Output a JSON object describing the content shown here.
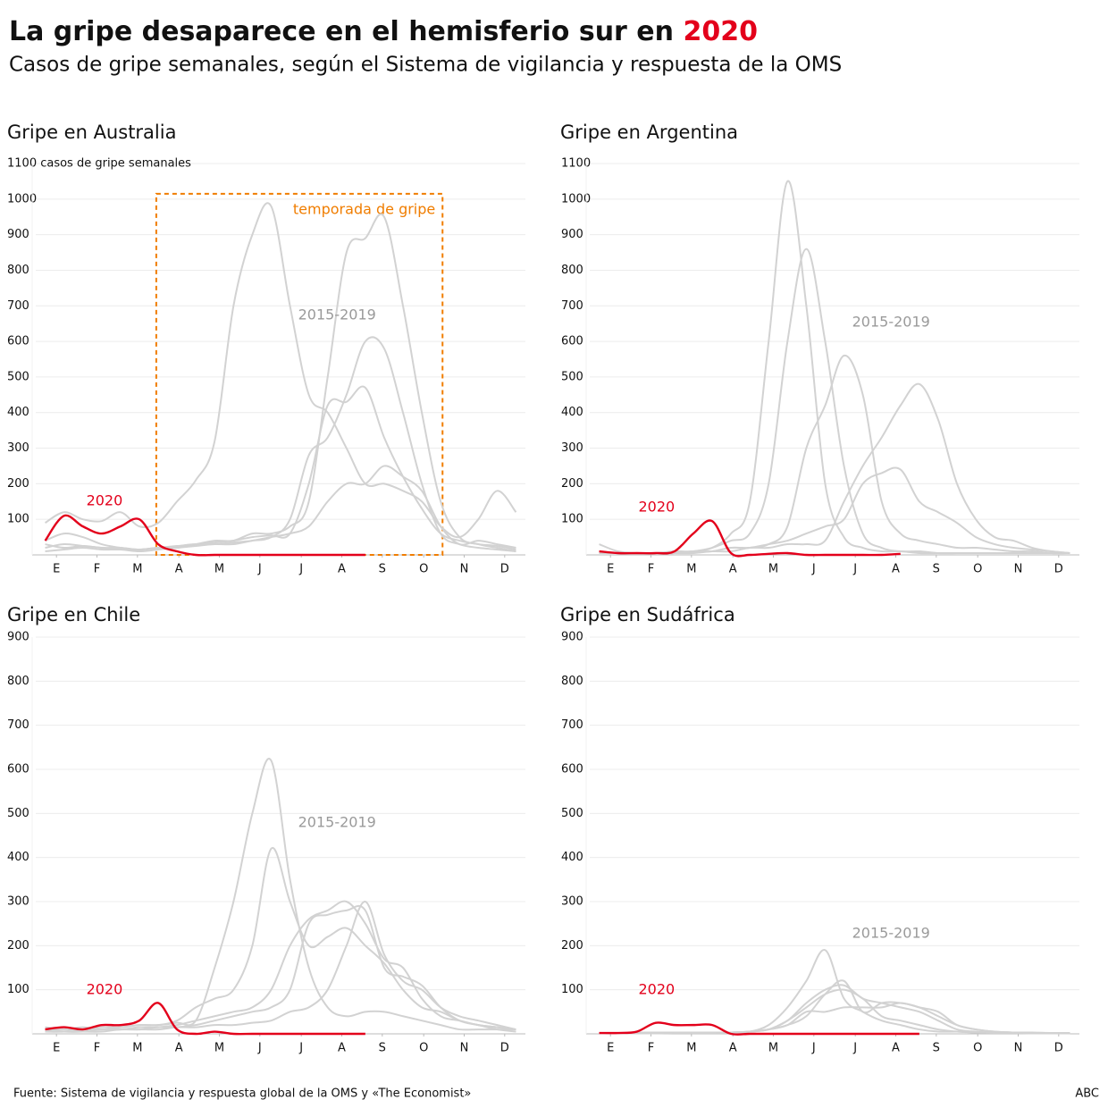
{
  "header": {
    "title": "La gripe desaparece en el hemisferio sur en",
    "title_highlight": "2020",
    "subtitle": "Casos de gripe semanales, según el Sistema de vigilancia y respuesta de la OMS"
  },
  "footer": {
    "source": "Fuente: Sistema de vigilancia y respuesta global de la OMS y «The Economist»",
    "brand": "ABC"
  },
  "chart_data": [
    {
      "type": "line",
      "title": "Gripe en Australia",
      "x": [
        1,
        3,
        5,
        7,
        9,
        11,
        13,
        15,
        17,
        19,
        21,
        23,
        25,
        27,
        29,
        31,
        33,
        35,
        37,
        39,
        41,
        43,
        45,
        47,
        49,
        51
      ],
      "xlim": [
        0,
        52
      ],
      "xticks": [
        {
          "value": 2.2,
          "label": "E"
        },
        {
          "value": 6.5,
          "label": "F"
        },
        {
          "value": 10.8,
          "label": "M"
        },
        {
          "value": 15.2,
          "label": "A"
        },
        {
          "value": 19.5,
          "label": "M"
        },
        {
          "value": 23.8,
          "label": "J"
        },
        {
          "value": 28.2,
          "label": "J"
        },
        {
          "value": 32.5,
          "label": "A"
        },
        {
          "value": 36.8,
          "label": "S"
        },
        {
          "value": 41.2,
          "label": "O"
        },
        {
          "value": 45.5,
          "label": "N"
        },
        {
          "value": 49.8,
          "label": "D"
        }
      ],
      "ylim": [
        0,
        1100
      ],
      "yticks": [
        100,
        200,
        300,
        400,
        500,
        600,
        700,
        800,
        900,
        1000,
        {
          "value": 1100,
          "label": "1100 casos de gripe semanales"
        }
      ],
      "grid": true,
      "series": [
        {
          "color": "#d2d2d2",
          "values": [
            90,
            120,
            100,
            95,
            120,
            80,
            90,
            150,
            210,
            320,
            700,
            900,
            980,
            700,
            450,
            400,
            300,
            200,
            200,
            180,
            150,
            80,
            50,
            100,
            180,
            120
          ]
        },
        {
          "color": "#d2d2d2",
          "values": [
            40,
            60,
            50,
            30,
            20,
            15,
            20,
            20,
            30,
            40,
            40,
            60,
            60,
            80,
            150,
            500,
            850,
            890,
            950,
            700,
            400,
            150,
            50,
            30,
            20,
            10
          ]
        },
        {
          "color": "#d2d2d2",
          "values": [
            20,
            30,
            25,
            20,
            15,
            15,
            20,
            25,
            30,
            30,
            35,
            40,
            50,
            100,
            280,
            330,
            450,
            600,
            580,
            400,
            200,
            60,
            30,
            20,
            15,
            10
          ]
        },
        {
          "color": "#d2d2d2",
          "values": [
            30,
            20,
            25,
            20,
            20,
            15,
            20,
            20,
            30,
            35,
            40,
            50,
            55,
            60,
            200,
            420,
            430,
            470,
            330,
            220,
            130,
            60,
            40,
            30,
            25,
            15
          ]
        },
        {
          "color": "#d2d2d2",
          "values": [
            10,
            15,
            20,
            15,
            15,
            10,
            15,
            20,
            25,
            30,
            30,
            40,
            50,
            60,
            80,
            150,
            200,
            200,
            250,
            220,
            180,
            80,
            30,
            40,
            30,
            20
          ]
        },
        {
          "color": "#e3001b",
          "values": [
            40,
            110,
            80,
            60,
            80,
            100,
            30,
            10,
            0,
            0,
            0,
            0,
            0,
            0,
            0,
            0,
            0,
            0,
            null,
            null,
            null,
            null,
            null,
            null,
            null,
            null
          ]
        }
      ],
      "annotations": [
        {
          "text": "2020",
          "x": 7.3,
          "y": 151,
          "color": "#e3001b"
        },
        {
          "text": "2015-2019",
          "x": 32,
          "y": 673,
          "color": "#9a9a9a"
        }
      ],
      "season": {
        "label": "temporada de gripe",
        "x0": 12.8,
        "x1": 43.2,
        "top": 1015,
        "color": "#f07d00"
      }
    },
    {
      "type": "line",
      "title": "Gripe en Argentina",
      "x": [
        1,
        3,
        5,
        7,
        9,
        11,
        13,
        15,
        17,
        19,
        21,
        23,
        25,
        27,
        29,
        31,
        33,
        35,
        37,
        39,
        41,
        43,
        45,
        47,
        49,
        51
      ],
      "xlim": [
        0,
        52
      ],
      "xticks": [
        {
          "value": 2.2,
          "label": "E"
        },
        {
          "value": 6.5,
          "label": "F"
        },
        {
          "value": 10.8,
          "label": "M"
        },
        {
          "value": 15.2,
          "label": "A"
        },
        {
          "value": 19.5,
          "label": "M"
        },
        {
          "value": 23.8,
          "label": "J"
        },
        {
          "value": 28.2,
          "label": "J"
        },
        {
          "value": 32.5,
          "label": "A"
        },
        {
          "value": 36.8,
          "label": "S"
        },
        {
          "value": 41.2,
          "label": "O"
        },
        {
          "value": 45.5,
          "label": "N"
        },
        {
          "value": 49.8,
          "label": "D"
        }
      ],
      "ylim": [
        0,
        1100
      ],
      "yticks": [
        100,
        200,
        300,
        400,
        500,
        600,
        700,
        800,
        900,
        1000,
        1100
      ],
      "grid": true,
      "series": [
        {
          "color": "#d2d2d2",
          "values": [
            30,
            10,
            5,
            5,
            10,
            10,
            20,
            60,
            150,
            600,
            1050,
            700,
            200,
            50,
            20,
            10,
            10,
            5,
            5,
            5,
            5,
            5,
            5,
            5,
            5,
            5
          ]
        },
        {
          "color": "#d2d2d2",
          "values": [
            10,
            5,
            5,
            5,
            5,
            10,
            20,
            40,
            60,
            200,
            600,
            860,
            600,
            250,
            60,
            20,
            10,
            10,
            5,
            5,
            5,
            5,
            5,
            5,
            5,
            5
          ]
        },
        {
          "color": "#d2d2d2",
          "values": [
            5,
            5,
            5,
            5,
            5,
            10,
            10,
            20,
            20,
            30,
            80,
            300,
            420,
            560,
            450,
            150,
            60,
            40,
            30,
            20,
            20,
            15,
            10,
            10,
            5,
            5
          ]
        },
        {
          "color": "#d2d2d2",
          "values": [
            5,
            5,
            5,
            5,
            5,
            5,
            10,
            10,
            20,
            20,
            30,
            30,
            40,
            150,
            250,
            330,
            420,
            480,
            380,
            200,
            100,
            50,
            40,
            20,
            10,
            5
          ]
        },
        {
          "color": "#d2d2d2",
          "values": [
            5,
            5,
            5,
            5,
            5,
            10,
            10,
            20,
            20,
            30,
            40,
            60,
            80,
            100,
            200,
            230,
            240,
            150,
            120,
            90,
            50,
            30,
            20,
            15,
            10,
            5
          ]
        },
        {
          "color": "#e3001b",
          "values": [
            10,
            5,
            5,
            5,
            10,
            60,
            95,
            5,
            0,
            3,
            5,
            0,
            0,
            0,
            0,
            0,
            3,
            null,
            null,
            null,
            null,
            null,
            null,
            null,
            null,
            null
          ]
        }
      ],
      "annotations": [
        {
          "text": "2020",
          "x": 7.1,
          "y": 133,
          "color": "#e3001b"
        },
        {
          "text": "2015-2019",
          "x": 32,
          "y": 653,
          "color": "#9a9a9a"
        }
      ]
    },
    {
      "type": "line",
      "title": "Gripe en Chile",
      "x": [
        1,
        3,
        5,
        7,
        9,
        11,
        13,
        15,
        17,
        19,
        21,
        23,
        25,
        27,
        29,
        31,
        33,
        35,
        37,
        39,
        41,
        43,
        45,
        47,
        49,
        51
      ],
      "xlim": [
        0,
        52
      ],
      "xticks": [
        {
          "value": 2.2,
          "label": "E"
        },
        {
          "value": 6.5,
          "label": "F"
        },
        {
          "value": 10.8,
          "label": "M"
        },
        {
          "value": 15.2,
          "label": "A"
        },
        {
          "value": 19.5,
          "label": "M"
        },
        {
          "value": 23.8,
          "label": "J"
        },
        {
          "value": 28.2,
          "label": "J"
        },
        {
          "value": 32.5,
          "label": "A"
        },
        {
          "value": 36.8,
          "label": "S"
        },
        {
          "value": 41.2,
          "label": "O"
        },
        {
          "value": 45.5,
          "label": "N"
        },
        {
          "value": 49.8,
          "label": "D"
        }
      ],
      "ylim": [
        0,
        900
      ],
      "yticks": [
        100,
        200,
        300,
        400,
        500,
        600,
        700,
        800,
        900
      ],
      "grid": true,
      "series": [
        {
          "color": "#d2d2d2",
          "values": [
            10,
            10,
            15,
            10,
            15,
            20,
            20,
            25,
            30,
            150,
            300,
            500,
            620,
            350,
            150,
            60,
            40,
            50,
            50,
            40,
            30,
            20,
            10,
            10,
            10,
            10
          ]
        },
        {
          "color": "#d2d2d2",
          "values": [
            15,
            10,
            10,
            15,
            15,
            20,
            20,
            30,
            60,
            80,
            100,
            200,
            420,
            300,
            200,
            220,
            240,
            200,
            160,
            100,
            60,
            50,
            30,
            20,
            15,
            10
          ]
        },
        {
          "color": "#d2d2d2",
          "values": [
            5,
            5,
            10,
            10,
            10,
            15,
            15,
            20,
            30,
            40,
            50,
            60,
            100,
            200,
            260,
            280,
            300,
            250,
            170,
            150,
            80,
            40,
            30,
            20,
            15,
            10
          ]
        },
        {
          "color": "#d2d2d2",
          "values": [
            10,
            5,
            5,
            10,
            10,
            10,
            15,
            15,
            20,
            30,
            40,
            50,
            60,
            100,
            250,
            270,
            280,
            280,
            150,
            130,
            110,
            60,
            30,
            20,
            10,
            5
          ]
        },
        {
          "color": "#d2d2d2",
          "values": [
            5,
            5,
            5,
            5,
            10,
            10,
            10,
            15,
            15,
            20,
            20,
            25,
            30,
            50,
            60,
            100,
            200,
            300,
            180,
            120,
            100,
            60,
            40,
            30,
            20,
            10
          ]
        },
        {
          "color": "#e3001b",
          "values": [
            10,
            15,
            10,
            20,
            20,
            30,
            70,
            10,
            0,
            5,
            0,
            0,
            0,
            0,
            0,
            0,
            0,
            0,
            null,
            null,
            null,
            null,
            null,
            null,
            null,
            null
          ]
        }
      ],
      "annotations": [
        {
          "text": "2020",
          "x": 7.3,
          "y": 99,
          "color": "#e3001b"
        },
        {
          "text": "2015-2019",
          "x": 32,
          "y": 478,
          "color": "#9a9a9a"
        }
      ]
    },
    {
      "type": "line",
      "title": "Gripe en Sudáfrica",
      "x": [
        1,
        3,
        5,
        7,
        9,
        11,
        13,
        15,
        17,
        19,
        21,
        23,
        25,
        27,
        29,
        31,
        33,
        35,
        37,
        39,
        41,
        43,
        45,
        47,
        49,
        51
      ],
      "xlim": [
        0,
        52
      ],
      "xticks": [
        {
          "value": 2.2,
          "label": "E"
        },
        {
          "value": 6.5,
          "label": "F"
        },
        {
          "value": 10.8,
          "label": "M"
        },
        {
          "value": 15.2,
          "label": "A"
        },
        {
          "value": 19.5,
          "label": "M"
        },
        {
          "value": 23.8,
          "label": "J"
        },
        {
          "value": 28.2,
          "label": "J"
        },
        {
          "value": 32.5,
          "label": "A"
        },
        {
          "value": 36.8,
          "label": "S"
        },
        {
          "value": 41.2,
          "label": "O"
        },
        {
          "value": 45.5,
          "label": "N"
        },
        {
          "value": 49.8,
          "label": "D"
        }
      ],
      "ylim": [
        0,
        900
      ],
      "yticks": [
        100,
        200,
        300,
        400,
        500,
        600,
        700,
        800,
        900
      ],
      "grid": true,
      "series": [
        {
          "color": "#d2d2d2",
          "values": [
            2,
            2,
            3,
            3,
            3,
            3,
            3,
            3,
            5,
            20,
            60,
            120,
            190,
            80,
            50,
            30,
            20,
            10,
            5,
            5,
            3,
            3,
            3,
            3,
            2,
            2
          ]
        },
        {
          "color": "#d2d2d2",
          "values": [
            2,
            2,
            2,
            3,
            3,
            3,
            3,
            3,
            5,
            10,
            30,
            70,
            100,
            110,
            80,
            70,
            60,
            50,
            30,
            10,
            5,
            3,
            3,
            2,
            2,
            2
          ]
        },
        {
          "color": "#d2d2d2",
          "values": [
            1,
            1,
            2,
            2,
            2,
            2,
            3,
            3,
            5,
            10,
            20,
            40,
            90,
            120,
            50,
            70,
            70,
            60,
            40,
            20,
            10,
            5,
            3,
            2,
            2,
            1
          ]
        },
        {
          "color": "#d2d2d2",
          "values": [
            1,
            1,
            1,
            2,
            2,
            2,
            2,
            3,
            5,
            10,
            20,
            50,
            50,
            60,
            60,
            60,
            70,
            60,
            50,
            20,
            10,
            5,
            3,
            2,
            1,
            1
          ]
        },
        {
          "color": "#d2d2d2",
          "values": [
            1,
            1,
            1,
            1,
            2,
            2,
            2,
            3,
            5,
            10,
            30,
            60,
            90,
            100,
            80,
            40,
            30,
            20,
            10,
            5,
            3,
            2,
            2,
            1,
            1,
            1
          ]
        },
        {
          "color": "#e3001b",
          "values": [
            2,
            2,
            5,
            25,
            20,
            20,
            20,
            0,
            0,
            0,
            0,
            0,
            0,
            0,
            0,
            0,
            0,
            0,
            null,
            null,
            null,
            null,
            null,
            null,
            null,
            null
          ]
        }
      ],
      "annotations": [
        {
          "text": "2020",
          "x": 7.1,
          "y": 99,
          "color": "#e3001b"
        },
        {
          "text": "2015-2019",
          "x": 32,
          "y": 227,
          "color": "#9a9a9a"
        }
      ]
    }
  ]
}
